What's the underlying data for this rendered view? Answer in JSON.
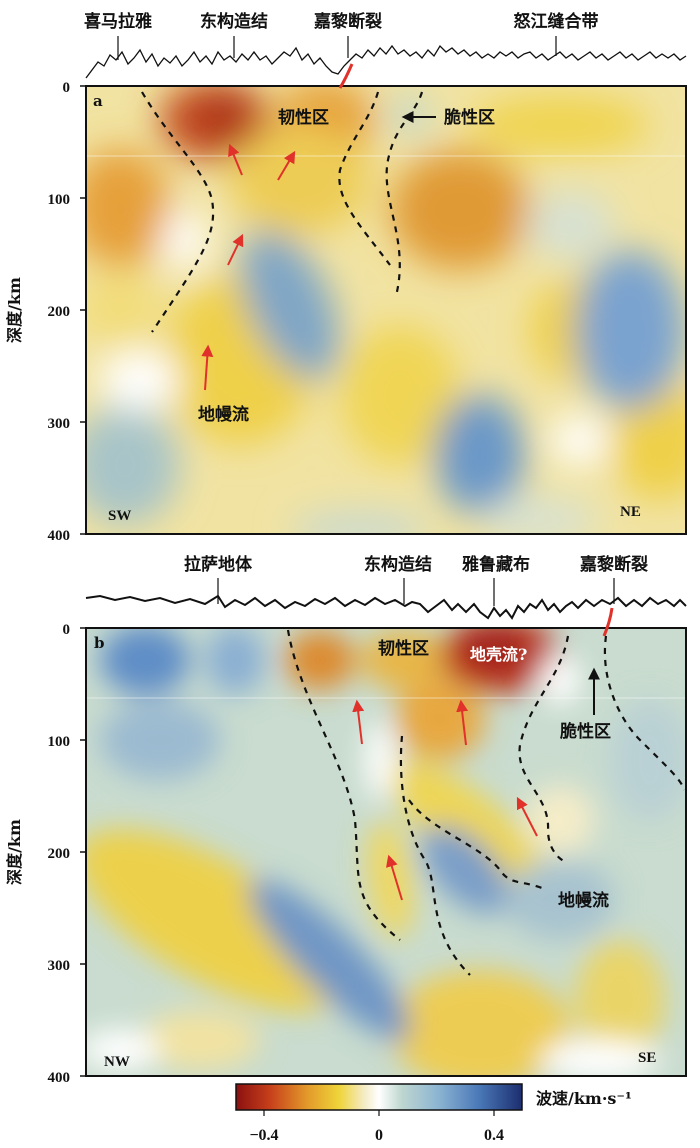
{
  "panel_a": {
    "letter": "a",
    "surface_labels": [
      "喜马拉雅",
      "东构造结",
      "嘉黎断裂",
      "怒江缝合带"
    ],
    "ylabel": "深度/km",
    "yticks": [
      "0",
      "100",
      "200",
      "300",
      "400"
    ],
    "annotations": {
      "ductile": "韧性区",
      "brittle": "脆性区",
      "mantle_flow": "地幔流"
    },
    "left_end": "SW",
    "right_end": "NE"
  },
  "panel_b": {
    "letter": "b",
    "surface_labels": [
      "拉萨地体",
      "东构造结",
      "雅鲁藏布",
      "嘉黎断裂"
    ],
    "ylabel": "深度/km",
    "yticks": [
      "0",
      "100",
      "200",
      "300",
      "400"
    ],
    "annotations": {
      "ductile": "韧性区",
      "crust_flow": "地壳流?",
      "brittle": "脆性区",
      "mantle_flow": "地幔流"
    },
    "left_end": "NW",
    "right_end": "SE"
  },
  "colorbar": {
    "label": "波速/km·s⁻¹",
    "ticks": [
      "−0.4",
      "0",
      "0.4"
    ],
    "range": [
      -0.5,
      0.5
    ],
    "colors": [
      "#8b1010",
      "#c7401b",
      "#e39a2a",
      "#efd43a",
      "#f4ecc8",
      "#ffffff",
      "#bed6cf",
      "#8fb7d3",
      "#4a78b8",
      "#1c2e6e"
    ]
  },
  "colors": {
    "red_arrow": "#e0322a",
    "fault_line": "#e0322a",
    "dashed": "#111111"
  }
}
